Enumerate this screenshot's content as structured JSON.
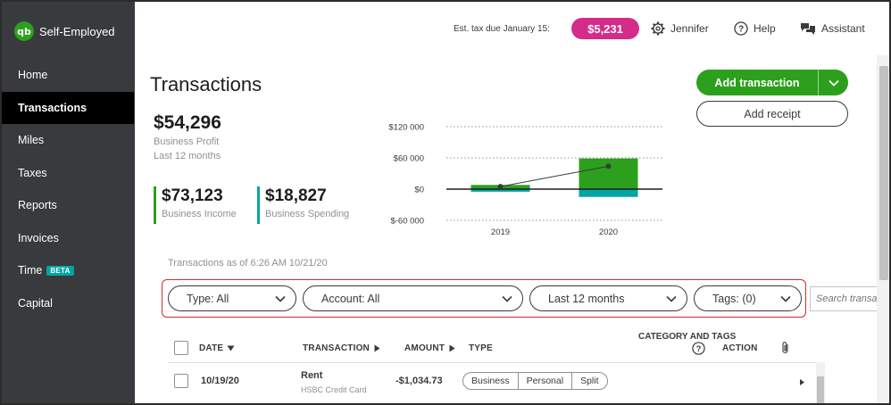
{
  "app": {
    "brand": "Self-Employed",
    "logo_text": "qb"
  },
  "sidebar": {
    "items": [
      {
        "label": "Home"
      },
      {
        "label": "Transactions",
        "active": true
      },
      {
        "label": "Miles"
      },
      {
        "label": "Taxes"
      },
      {
        "label": "Reports"
      },
      {
        "label": "Invoices"
      },
      {
        "label": "Time",
        "badge": "BETA"
      },
      {
        "label": "Capital"
      }
    ]
  },
  "header": {
    "est_tax_label": "Est. tax due January 15:",
    "est_tax_amount": "$5,231",
    "user": "Jennifer",
    "help": "Help",
    "assistant": "Assistant"
  },
  "page": {
    "title": "Transactions",
    "add_transaction": "Add transaction",
    "add_receipt": "Add receipt"
  },
  "summary": {
    "profit_amount": "$54,296",
    "profit_label": "Business Profit",
    "profit_period": "Last 12 months",
    "income_amount": "$73,123",
    "income_label": "Business Income",
    "spending_amount": "$18,827",
    "spending_label": "Business Spending"
  },
  "chart_data": {
    "type": "bar",
    "categories": [
      "2019",
      "2020"
    ],
    "series": [
      {
        "values": [
          8000,
          59000
        ],
        "color": "#2ca01c"
      },
      {
        "values": [
          -5000,
          -15000
        ],
        "color": "#00a6a4"
      }
    ],
    "line": {
      "values": [
        5000,
        44000
      ],
      "color": "#393a3d"
    },
    "ylim": [
      -60000,
      120000
    ],
    "yticks": [
      120000,
      60000,
      0,
      -60000
    ],
    "ytick_labels": [
      "$120 000",
      "$60 000",
      "$0",
      "$-60 000"
    ],
    "grid": true
  },
  "transactions": {
    "as_of": "Transactions as of 6:26 AM 10/21/20",
    "filters": {
      "type": "Type: All",
      "account": "Account: All",
      "period": "Last 12 months",
      "tags": "Tags: (0)"
    },
    "search_placeholder": "Search transa",
    "columns": {
      "date": "DATE",
      "transaction": "TRANSACTION",
      "amount": "AMOUNT",
      "type": "TYPE",
      "category": "CATEGORY AND TAGS",
      "action": "ACTION"
    },
    "rows": [
      {
        "date": "10/19/20",
        "payee": "Rent",
        "account": "HSBC Credit Card",
        "amount": "-$1,034.73",
        "type_options": [
          "Business",
          "Personal",
          "Split"
        ]
      }
    ]
  }
}
